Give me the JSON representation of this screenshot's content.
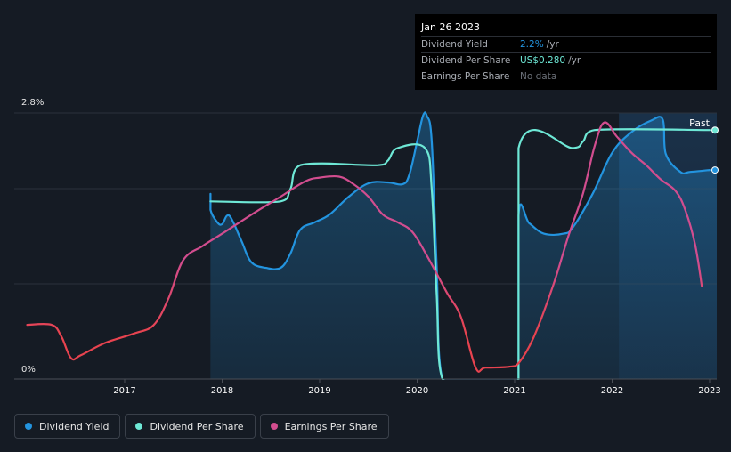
{
  "chart_data": {
    "type": "line",
    "title": "",
    "xlabel": "",
    "ylabel": "",
    "ylim": [
      0,
      2.8
    ],
    "y_tick_labels": [
      "0%",
      "2.8%"
    ],
    "xlim": [
      2016.0,
      2023.05
    ],
    "x_ticks": [
      2017,
      2018,
      2019,
      2020,
      2021,
      2022,
      2023
    ],
    "x_tick_labels": [
      "2017",
      "2018",
      "2019",
      "2020",
      "2021",
      "2022",
      "2023"
    ],
    "past_label": "Past",
    "past_start": 2022.07,
    "series": [
      {
        "name": "Dividend Yield",
        "color": "#2394df",
        "filled": true,
        "fill_start": 2017.88,
        "points": [
          [
            2017.88,
            1.95
          ],
          [
            2017.88,
            1.78
          ],
          [
            2017.95,
            1.65
          ],
          [
            2018.0,
            1.63
          ],
          [
            2018.05,
            1.72
          ],
          [
            2018.1,
            1.68
          ],
          [
            2018.2,
            1.45
          ],
          [
            2018.3,
            1.23
          ],
          [
            2018.45,
            1.17
          ],
          [
            2018.6,
            1.17
          ],
          [
            2018.7,
            1.32
          ],
          [
            2018.8,
            1.57
          ],
          [
            2018.95,
            1.65
          ],
          [
            2019.1,
            1.73
          ],
          [
            2019.3,
            1.92
          ],
          [
            2019.5,
            2.06
          ],
          [
            2019.7,
            2.07
          ],
          [
            2019.85,
            2.05
          ],
          [
            2019.92,
            2.15
          ],
          [
            2020.0,
            2.5
          ],
          [
            2020.06,
            2.77
          ],
          [
            2020.1,
            2.77
          ],
          [
            2020.15,
            2.5
          ],
          [
            2020.2,
            1.2
          ],
          [
            2020.26,
            0.0
          ],
          [
            2021.04,
            0.0
          ],
          [
            2021.04,
            1.72
          ],
          [
            2021.15,
            1.64
          ],
          [
            2021.3,
            1.53
          ],
          [
            2021.5,
            1.53
          ],
          [
            2021.6,
            1.6
          ],
          [
            2021.8,
            1.95
          ],
          [
            2022.0,
            2.38
          ],
          [
            2022.2,
            2.6
          ],
          [
            2022.4,
            2.72
          ],
          [
            2022.52,
            2.73
          ],
          [
            2022.55,
            2.37
          ],
          [
            2022.7,
            2.18
          ],
          [
            2022.8,
            2.18
          ],
          [
            2023.0,
            2.2
          ]
        ]
      },
      {
        "name": "Dividend Per Share",
        "color": "#6ee8d6",
        "filled": false,
        "points": [
          [
            2017.88,
            1.87
          ],
          [
            2018.6,
            1.87
          ],
          [
            2018.7,
            2.0
          ],
          [
            2018.8,
            2.25
          ],
          [
            2019.6,
            2.25
          ],
          [
            2019.7,
            2.3
          ],
          [
            2019.8,
            2.43
          ],
          [
            2020.08,
            2.43
          ],
          [
            2020.15,
            2.0
          ],
          [
            2020.2,
            0.9
          ],
          [
            2020.26,
            0.0
          ],
          [
            2021.04,
            0.0
          ],
          [
            2021.04,
            2.43
          ],
          [
            2021.6,
            2.43
          ],
          [
            2021.7,
            2.5
          ],
          [
            2021.82,
            2.62
          ],
          [
            2023.0,
            2.62
          ]
        ]
      },
      {
        "name": "Earnings Per Share",
        "color": "#d24d8f",
        "gradient_colors": [
          "#d24d8f",
          "#e8434f"
        ],
        "filled": false,
        "points": [
          [
            2016.0,
            0.57
          ],
          [
            2016.25,
            0.57
          ],
          [
            2016.35,
            0.45
          ],
          [
            2016.45,
            0.22
          ],
          [
            2016.55,
            0.25
          ],
          [
            2016.8,
            0.38
          ],
          [
            2017.1,
            0.48
          ],
          [
            2017.3,
            0.57
          ],
          [
            2017.45,
            0.85
          ],
          [
            2017.6,
            1.25
          ],
          [
            2017.8,
            1.4
          ],
          [
            2018.0,
            1.53
          ],
          [
            2018.3,
            1.73
          ],
          [
            2018.6,
            1.92
          ],
          [
            2018.85,
            2.08
          ],
          [
            2019.0,
            2.12
          ],
          [
            2019.2,
            2.13
          ],
          [
            2019.35,
            2.05
          ],
          [
            2019.5,
            1.92
          ],
          [
            2019.65,
            1.73
          ],
          [
            2019.8,
            1.65
          ],
          [
            2019.95,
            1.55
          ],
          [
            2020.1,
            1.3
          ],
          [
            2020.3,
            0.92
          ],
          [
            2020.45,
            0.65
          ],
          [
            2020.6,
            0.12
          ],
          [
            2020.7,
            0.12
          ],
          [
            2020.95,
            0.13
          ],
          [
            2021.05,
            0.18
          ],
          [
            2021.2,
            0.45
          ],
          [
            2021.4,
            1.0
          ],
          [
            2021.55,
            1.5
          ],
          [
            2021.7,
            1.95
          ],
          [
            2021.82,
            2.45
          ],
          [
            2021.92,
            2.7
          ],
          [
            2022.05,
            2.55
          ],
          [
            2022.2,
            2.38
          ],
          [
            2022.35,
            2.25
          ],
          [
            2022.5,
            2.1
          ],
          [
            2022.65,
            1.98
          ],
          [
            2022.75,
            1.78
          ],
          [
            2022.85,
            1.42
          ],
          [
            2022.92,
            0.98
          ]
        ]
      }
    ]
  },
  "tooltip": {
    "date": "Jan 26 2023",
    "rows": [
      {
        "label": "Dividend Yield",
        "value": "2.2%",
        "unit": "/yr",
        "color": "#2394df"
      },
      {
        "label": "Dividend Per Share",
        "value": "US$0.280",
        "unit": "/yr",
        "color": "#6ee8d6"
      },
      {
        "label": "Earnings Per Share",
        "value": "No data",
        "unit": "",
        "color": "#6b7078"
      }
    ]
  },
  "legend": [
    {
      "label": "Dividend Yield",
      "color": "#2394df"
    },
    {
      "label": "Dividend Per Share",
      "color": "#6ee8d6"
    },
    {
      "label": "Earnings Per Share",
      "color": "#d24d8f"
    }
  ]
}
